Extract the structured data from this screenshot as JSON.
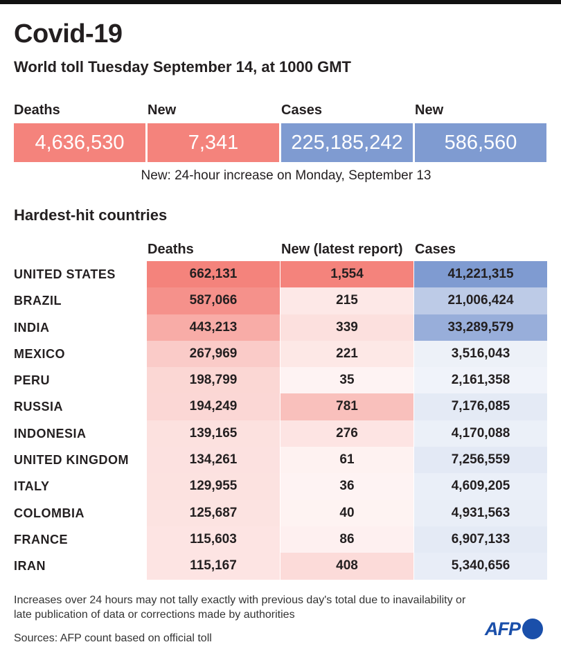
{
  "title": "Covid-19",
  "subtitle": "World toll Tuesday September 14,  at 1000 GMT",
  "colors": {
    "deaths_accent": "#f4837c",
    "cases_accent": "#7f9bd1"
  },
  "totals": {
    "deaths_label": "Deaths",
    "deaths_value": "4,636,530",
    "new_deaths_label": "New",
    "new_deaths_value": "7,341",
    "cases_label": "Cases",
    "cases_value": "225,185,242",
    "new_cases_label": "New",
    "new_cases_value": "586,560"
  },
  "note": "New: 24-hour increase on Monday, September 13",
  "section_title": "Hardest-hit countries",
  "chart_data": {
    "type": "table",
    "title": "Hardest-hit countries",
    "columns": [
      "Deaths",
      "New (latest report)",
      "Cases"
    ],
    "rows": [
      {
        "country": "UNITED STATES",
        "deaths": "662,131",
        "new": "1,554",
        "cases": "41,221,315"
      },
      {
        "country": "BRAZIL",
        "deaths": "587,066",
        "new": "215",
        "cases": "21,006,424"
      },
      {
        "country": "INDIA",
        "deaths": "443,213",
        "new": "339",
        "cases": "33,289,579"
      },
      {
        "country": "MEXICO",
        "deaths": "267,969",
        "new": "221",
        "cases": "3,516,043"
      },
      {
        "country": "PERU",
        "deaths": "198,799",
        "new": "35",
        "cases": "2,161,358"
      },
      {
        "country": "RUSSIA",
        "deaths": "194,249",
        "new": "781",
        "cases": "7,176,085"
      },
      {
        "country": "INDONESIA",
        "deaths": "139,165",
        "new": "276",
        "cases": "4,170,088"
      },
      {
        "country": "UNITED KINGDOM",
        "deaths": "134,261",
        "new": "61",
        "cases": "7,256,559"
      },
      {
        "country": "ITALY",
        "deaths": "129,955",
        "new": "36",
        "cases": "4,609,205"
      },
      {
        "country": "COLOMBIA",
        "deaths": "125,687",
        "new": "40",
        "cases": "4,931,563"
      },
      {
        "country": "FRANCE",
        "deaths": "115,603",
        "new": "86",
        "cases": "6,907,133"
      },
      {
        "country": "IRAN",
        "deaths": "115,167",
        "new": "408",
        "cases": "5,340,656"
      }
    ]
  },
  "footnote": "Increases over 24 hours may not tally exactly with previous day's total due to inavailability or late publication of data or corrections made by authorities",
  "source": "Sources: AFP count based on official toll",
  "logo_text": "AFP"
}
